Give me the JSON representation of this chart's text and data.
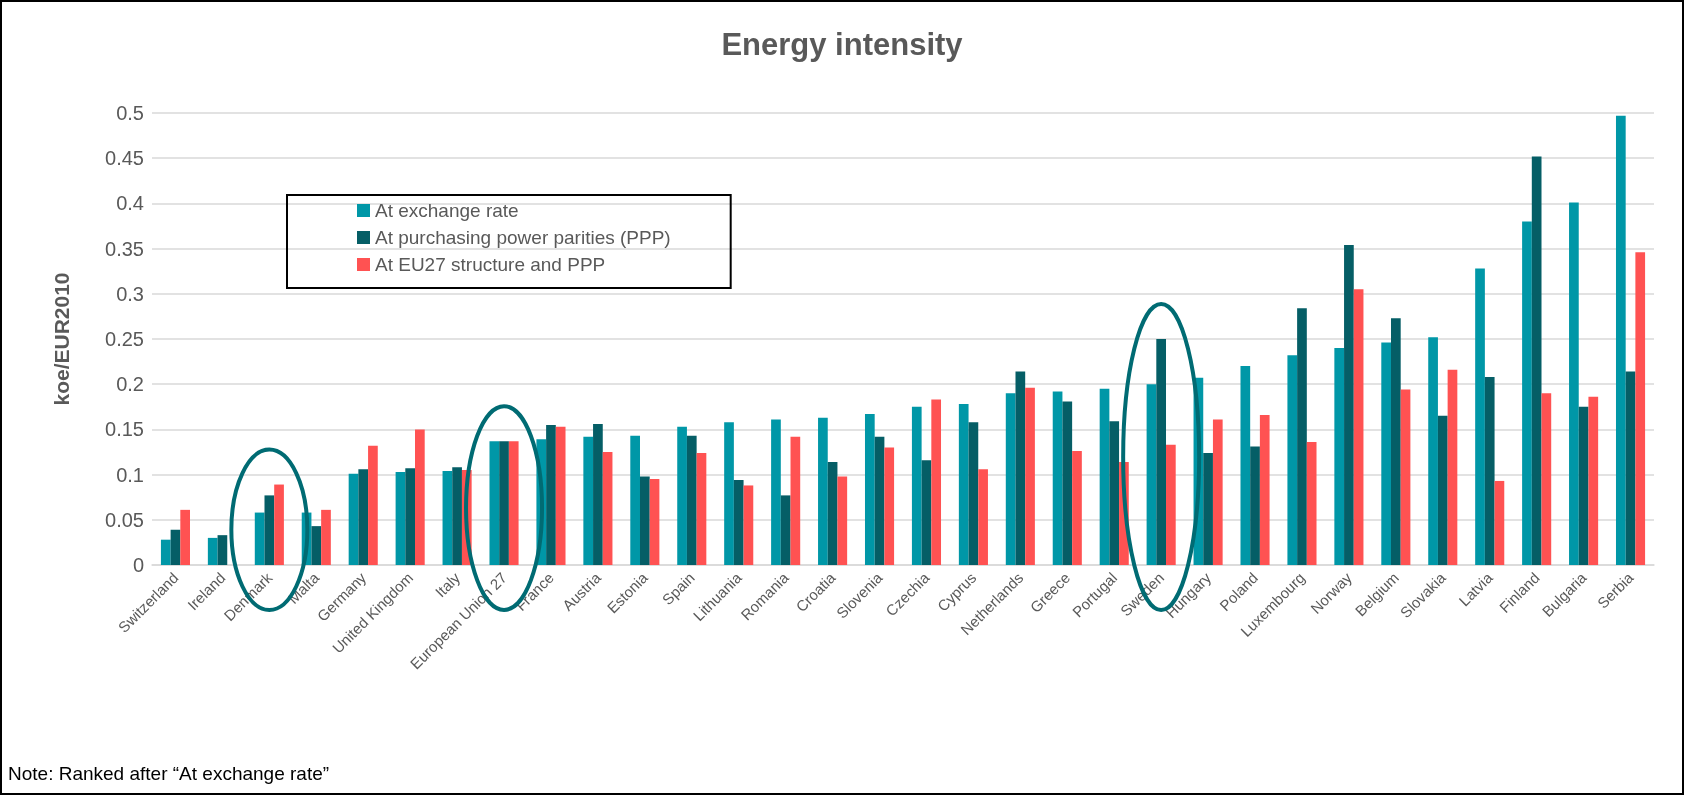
{
  "chart_data": {
    "type": "bar",
    "title": "Energy intensity",
    "ylabel": "koe/EUR2010",
    "categories": [
      "Switzerland",
      "Ireland",
      "Denmark",
      "Malta",
      "Germany",
      "United Kingdom",
      "Italy",
      "European Union 27",
      "France",
      "Austria",
      "Estonia",
      "Spain",
      "Lithuania",
      "Romania",
      "Croatia",
      "Slovenia",
      "Czechia",
      "Cyprus",
      "Netherlands",
      "Greece",
      "Portugal",
      "Sweden",
      "Hungary",
      "Poland",
      "Luxembourg",
      "Norway",
      "Belgium",
      "Slovakia",
      "Latvia",
      "Finland",
      "Bulgaria",
      "Serbia"
    ],
    "series": [
      {
        "name": "At exchange rate",
        "color": "#0097a7",
        "values": [
          0.028,
          0.03,
          0.058,
          0.058,
          0.101,
          0.103,
          0.104,
          0.137,
          0.139,
          0.142,
          0.143,
          0.153,
          0.158,
          0.161,
          0.163,
          0.167,
          0.175,
          0.178,
          0.19,
          0.192,
          0.195,
          0.2,
          0.207,
          0.22,
          0.232,
          0.24,
          0.246,
          0.252,
          0.328,
          0.38,
          0.401,
          0.497
        ]
      },
      {
        "name": "At purchasing power parities (PPP)",
        "color": "#055e66",
        "values": [
          0.039,
          0.033,
          0.077,
          0.043,
          0.106,
          0.107,
          0.108,
          0.137,
          0.155,
          0.156,
          0.098,
          0.143,
          0.094,
          0.077,
          0.114,
          0.142,
          0.116,
          0.158,
          0.214,
          0.181,
          0.159,
          0.25,
          0.124,
          0.131,
          0.284,
          0.354,
          0.273,
          0.165,
          0.208,
          0.452,
          0.175,
          0.214
        ]
      },
      {
        "name": "At EU27 structure and PPP",
        "color": "#ff5252",
        "values": [
          0.061,
          null,
          0.089,
          0.061,
          0.132,
          0.15,
          0.105,
          0.137,
          0.153,
          0.125,
          0.095,
          0.124,
          0.088,
          0.142,
          0.098,
          0.13,
          0.183,
          0.106,
          0.196,
          0.126,
          0.114,
          0.133,
          0.161,
          0.166,
          0.136,
          0.305,
          0.194,
          0.216,
          0.093,
          0.19,
          0.186,
          0.346
        ]
      }
    ],
    "ylim": [
      0,
      0.5
    ],
    "yticks": [
      0,
      0.05,
      0.1,
      0.15,
      0.2,
      0.25,
      0.3,
      0.35,
      0.4,
      0.45,
      0.5
    ],
    "grid": "y",
    "legend": "top left",
    "annotations": [
      "Note: Ranked after “At exchange rate”"
    ]
  }
}
